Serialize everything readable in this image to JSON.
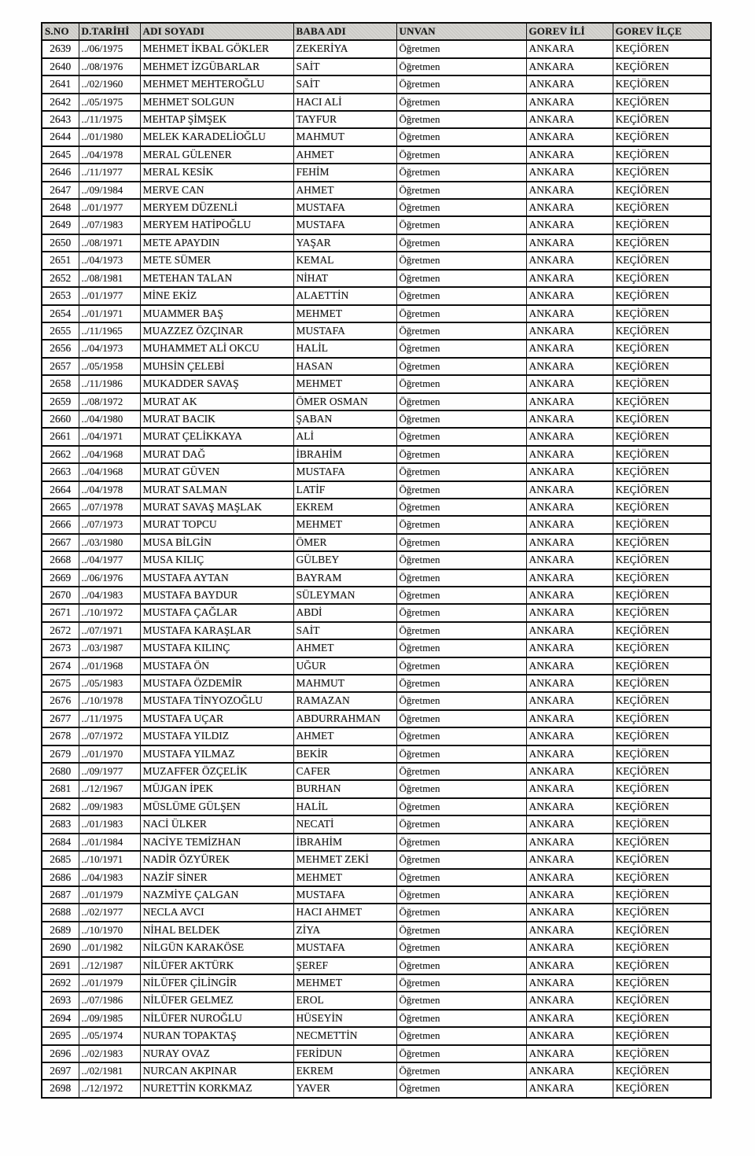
{
  "table": {
    "columns": [
      "S.NO",
      "D.TARİHİ",
      "ADI SOYADI",
      "BABA ADI",
      "UNVAN",
      "GOREV İLİ",
      "GOREV İLÇE"
    ],
    "rows": [
      [
        "2639",
        "../06/1975",
        "MEHMET İKBAL GÖKLER",
        "ZEKERİYA",
        "Öğretmen",
        "ANKARA",
        "KEÇİÖREN"
      ],
      [
        "2640",
        "../08/1976",
        "MEHMET İZGÜBARLAR",
        "SAİT",
        "Öğretmen",
        "ANKARA",
        "KEÇİÖREN"
      ],
      [
        "2641",
        "../02/1960",
        "MEHMET MEHTEROĞLU",
        "SAİT",
        "Öğretmen",
        "ANKARA",
        "KEÇİÖREN"
      ],
      [
        "2642",
        "../05/1975",
        "MEHMET SOLGUN",
        "HACI ALİ",
        "Öğretmen",
        "ANKARA",
        "KEÇİÖREN"
      ],
      [
        "2643",
        "../11/1975",
        "MEHTAP ŞİMŞEK",
        "TAYFUR",
        "Öğretmen",
        "ANKARA",
        "KEÇİÖREN"
      ],
      [
        "2644",
        "../01/1980",
        "MELEK KARADELİOĞLU",
        "MAHMUT",
        "Öğretmen",
        "ANKARA",
        "KEÇİÖREN"
      ],
      [
        "2645",
        "../04/1978",
        "MERAL GÜLENER",
        "AHMET",
        "Öğretmen",
        "ANKARA",
        "KEÇİÖREN"
      ],
      [
        "2646",
        "../11/1977",
        "MERAL KESİK",
        "FEHİM",
        "Öğretmen",
        "ANKARA",
        "KEÇİÖREN"
      ],
      [
        "2647",
        "../09/1984",
        "MERVE CAN",
        "AHMET",
        "Öğretmen",
        "ANKARA",
        "KEÇİÖREN"
      ],
      [
        "2648",
        "../01/1977",
        "MERYEM DÜZENLİ",
        "MUSTAFA",
        "Öğretmen",
        "ANKARA",
        "KEÇİÖREN"
      ],
      [
        "2649",
        "../07/1983",
        "MERYEM HATİPOĞLU",
        "MUSTAFA",
        "Öğretmen",
        "ANKARA",
        "KEÇİÖREN"
      ],
      [
        "2650",
        "../08/1971",
        "METE APAYDIN",
        "YAŞAR",
        "Öğretmen",
        "ANKARA",
        "KEÇİÖREN"
      ],
      [
        "2651",
        "../04/1973",
        "METE SÜMER",
        "KEMAL",
        "Öğretmen",
        "ANKARA",
        "KEÇİÖREN"
      ],
      [
        "2652",
        "../08/1981",
        "METEHAN TALAN",
        "NİHAT",
        "Öğretmen",
        "ANKARA",
        "KEÇİÖREN"
      ],
      [
        "2653",
        "../01/1977",
        "MİNE EKİZ",
        "ALAETTİN",
        "Öğretmen",
        "ANKARA",
        "KEÇİÖREN"
      ],
      [
        "2654",
        "../01/1971",
        "MUAMMER BAŞ",
        "MEHMET",
        "Öğretmen",
        "ANKARA",
        "KEÇİÖREN"
      ],
      [
        "2655",
        "../11/1965",
        "MUAZZEZ ÖZÇINAR",
        "MUSTAFA",
        "Öğretmen",
        "ANKARA",
        "KEÇİÖREN"
      ],
      [
        "2656",
        "../04/1973",
        "MUHAMMET ALİ OKCU",
        "HALİL",
        "Öğretmen",
        "ANKARA",
        "KEÇİÖREN"
      ],
      [
        "2657",
        "../05/1958",
        "MUHSİN ÇELEBİ",
        "HASAN",
        "Öğretmen",
        "ANKARA",
        "KEÇİÖREN"
      ],
      [
        "2658",
        "../11/1986",
        "MUKADDER SAVAŞ",
        "MEHMET",
        "Öğretmen",
        "ANKARA",
        "KEÇİÖREN"
      ],
      [
        "2659",
        "../08/1972",
        "MURAT AK",
        "ÖMER OSMAN",
        "Öğretmen",
        "ANKARA",
        "KEÇİÖREN"
      ],
      [
        "2660",
        "../04/1980",
        "MURAT BACIK",
        "ŞABAN",
        "Öğretmen",
        "ANKARA",
        "KEÇİÖREN"
      ],
      [
        "2661",
        "../04/1971",
        "MURAT ÇELİKKAYA",
        "ALİ",
        "Öğretmen",
        "ANKARA",
        "KEÇİÖREN"
      ],
      [
        "2662",
        "../04/1968",
        "MURAT DAĞ",
        "İBRAHİM",
        "Öğretmen",
        "ANKARA",
        "KEÇİÖREN"
      ],
      [
        "2663",
        "../04/1968",
        "MURAT GÜVEN",
        "MUSTAFA",
        "Öğretmen",
        "ANKARA",
        "KEÇİÖREN"
      ],
      [
        "2664",
        "../04/1978",
        "MURAT SALMAN",
        "LATİF",
        "Öğretmen",
        "ANKARA",
        "KEÇİÖREN"
      ],
      [
        "2665",
        "../07/1978",
        "MURAT SAVAŞ MAŞLAK",
        "EKREM",
        "Öğretmen",
        "ANKARA",
        "KEÇİÖREN"
      ],
      [
        "2666",
        "../07/1973",
        "MURAT TOPCU",
        "MEHMET",
        "Öğretmen",
        "ANKARA",
        "KEÇİÖREN"
      ],
      [
        "2667",
        "../03/1980",
        "MUSA BİLGİN",
        "ÖMER",
        "Öğretmen",
        "ANKARA",
        "KEÇİÖREN"
      ],
      [
        "2668",
        "../04/1977",
        "MUSA KILIÇ",
        "GÜLBEY",
        "Öğretmen",
        "ANKARA",
        "KEÇİÖREN"
      ],
      [
        "2669",
        "../06/1976",
        "MUSTAFA AYTAN",
        "BAYRAM",
        "Öğretmen",
        "ANKARA",
        "KEÇİÖREN"
      ],
      [
        "2670",
        "../04/1983",
        "MUSTAFA BAYDUR",
        "SÜLEYMAN",
        "Öğretmen",
        "ANKARA",
        "KEÇİÖREN"
      ],
      [
        "2671",
        "../10/1972",
        "MUSTAFA ÇAĞLAR",
        "ABDİ",
        "Öğretmen",
        "ANKARA",
        "KEÇİÖREN"
      ],
      [
        "2672",
        "../07/1971",
        "MUSTAFA KARAŞLAR",
        "SAİT",
        "Öğretmen",
        "ANKARA",
        "KEÇİÖREN"
      ],
      [
        "2673",
        "../03/1987",
        "MUSTAFA KILINÇ",
        "AHMET",
        "Öğretmen",
        "ANKARA",
        "KEÇİÖREN"
      ],
      [
        "2674",
        "../01/1968",
        "MUSTAFA ÖN",
        "UĞUR",
        "Öğretmen",
        "ANKARA",
        "KEÇİÖREN"
      ],
      [
        "2675",
        "../05/1983",
        "MUSTAFA ÖZDEMİR",
        "MAHMUT",
        "Öğretmen",
        "ANKARA",
        "KEÇİÖREN"
      ],
      [
        "2676",
        "../10/1978",
        "MUSTAFA TİNYOZOĞLU",
        "RAMAZAN",
        "Öğretmen",
        "ANKARA",
        "KEÇİÖREN"
      ],
      [
        "2677",
        "../11/1975",
        "MUSTAFA UÇAR",
        "ABDURRAHMAN",
        "Öğretmen",
        "ANKARA",
        "KEÇİÖREN"
      ],
      [
        "2678",
        "../07/1972",
        "MUSTAFA YILDIZ",
        "AHMET",
        "Öğretmen",
        "ANKARA",
        "KEÇİÖREN"
      ],
      [
        "2679",
        "../01/1970",
        "MUSTAFA YILMAZ",
        "BEKİR",
        "Öğretmen",
        "ANKARA",
        "KEÇİÖREN"
      ],
      [
        "2680",
        "../09/1977",
        "MUZAFFER ÖZÇELİK",
        "CAFER",
        "Öğretmen",
        "ANKARA",
        "KEÇİÖREN"
      ],
      [
        "2681",
        "../12/1967",
        "MÜJGAN İPEK",
        "BURHAN",
        "Öğretmen",
        "ANKARA",
        "KEÇİÖREN"
      ],
      [
        "2682",
        "../09/1983",
        "MÜSLÜME GÜLŞEN",
        "HALİL",
        "Öğretmen",
        "ANKARA",
        "KEÇİÖREN"
      ],
      [
        "2683",
        "../01/1983",
        "NACİ ÜLKER",
        "NECATİ",
        "Öğretmen",
        "ANKARA",
        "KEÇİÖREN"
      ],
      [
        "2684",
        "../01/1984",
        "NACİYE TEMİZHAN",
        "İBRAHİM",
        "Öğretmen",
        "ANKARA",
        "KEÇİÖREN"
      ],
      [
        "2685",
        "../10/1971",
        "NADİR ÖZYÜREK",
        "MEHMET ZEKİ",
        "Öğretmen",
        "ANKARA",
        "KEÇİÖREN"
      ],
      [
        "2686",
        "../04/1983",
        "NAZİF SİNER",
        "MEHMET",
        "Öğretmen",
        "ANKARA",
        "KEÇİÖREN"
      ],
      [
        "2687",
        "../01/1979",
        "NAZMİYE ÇALGAN",
        "MUSTAFA",
        "Öğretmen",
        "ANKARA",
        "KEÇİÖREN"
      ],
      [
        "2688",
        "../02/1977",
        "NECLA AVCI",
        "HACI AHMET",
        "Öğretmen",
        "ANKARA",
        "KEÇİÖREN"
      ],
      [
        "2689",
        "../10/1970",
        "NİHAL BELDEK",
        "ZİYA",
        "Öğretmen",
        "ANKARA",
        "KEÇİÖREN"
      ],
      [
        "2690",
        "../01/1982",
        "NİLGÜN KARAKÖSE",
        "MUSTAFA",
        "Öğretmen",
        "ANKARA",
        "KEÇİÖREN"
      ],
      [
        "2691",
        "../12/1987",
        "NİLÜFER AKTÜRK",
        "ŞEREF",
        "Öğretmen",
        "ANKARA",
        "KEÇİÖREN"
      ],
      [
        "2692",
        "../01/1979",
        "NİLÜFER ÇİLİNGİR",
        "MEHMET",
        "Öğretmen",
        "ANKARA",
        "KEÇİÖREN"
      ],
      [
        "2693",
        "../07/1986",
        "NİLÜFER GELMEZ",
        "EROL",
        "Öğretmen",
        "ANKARA",
        "KEÇİÖREN"
      ],
      [
        "2694",
        "../09/1985",
        "NİLÜFER NUROĞLU",
        "HÜSEYİN",
        "Öğretmen",
        "ANKARA",
        "KEÇİÖREN"
      ],
      [
        "2695",
        "../05/1974",
        "NURAN TOPAKTAŞ",
        "NECMETTİN",
        "Öğretmen",
        "ANKARA",
        "KEÇİÖREN"
      ],
      [
        "2696",
        "../02/1983",
        "NURAY OVAZ",
        "FERİDUN",
        "Öğretmen",
        "ANKARA",
        "KEÇİÖREN"
      ],
      [
        "2697",
        "../02/1981",
        "NURCAN AKPINAR",
        "EKREM",
        "Öğretmen",
        "ANKARA",
        "KEÇİÖREN"
      ],
      [
        "2698",
        "../12/1972",
        "NURETTİN KORKMAZ",
        "YAVER",
        "Öğretmen",
        "ANKARA",
        "KEÇİÖREN"
      ]
    ]
  }
}
